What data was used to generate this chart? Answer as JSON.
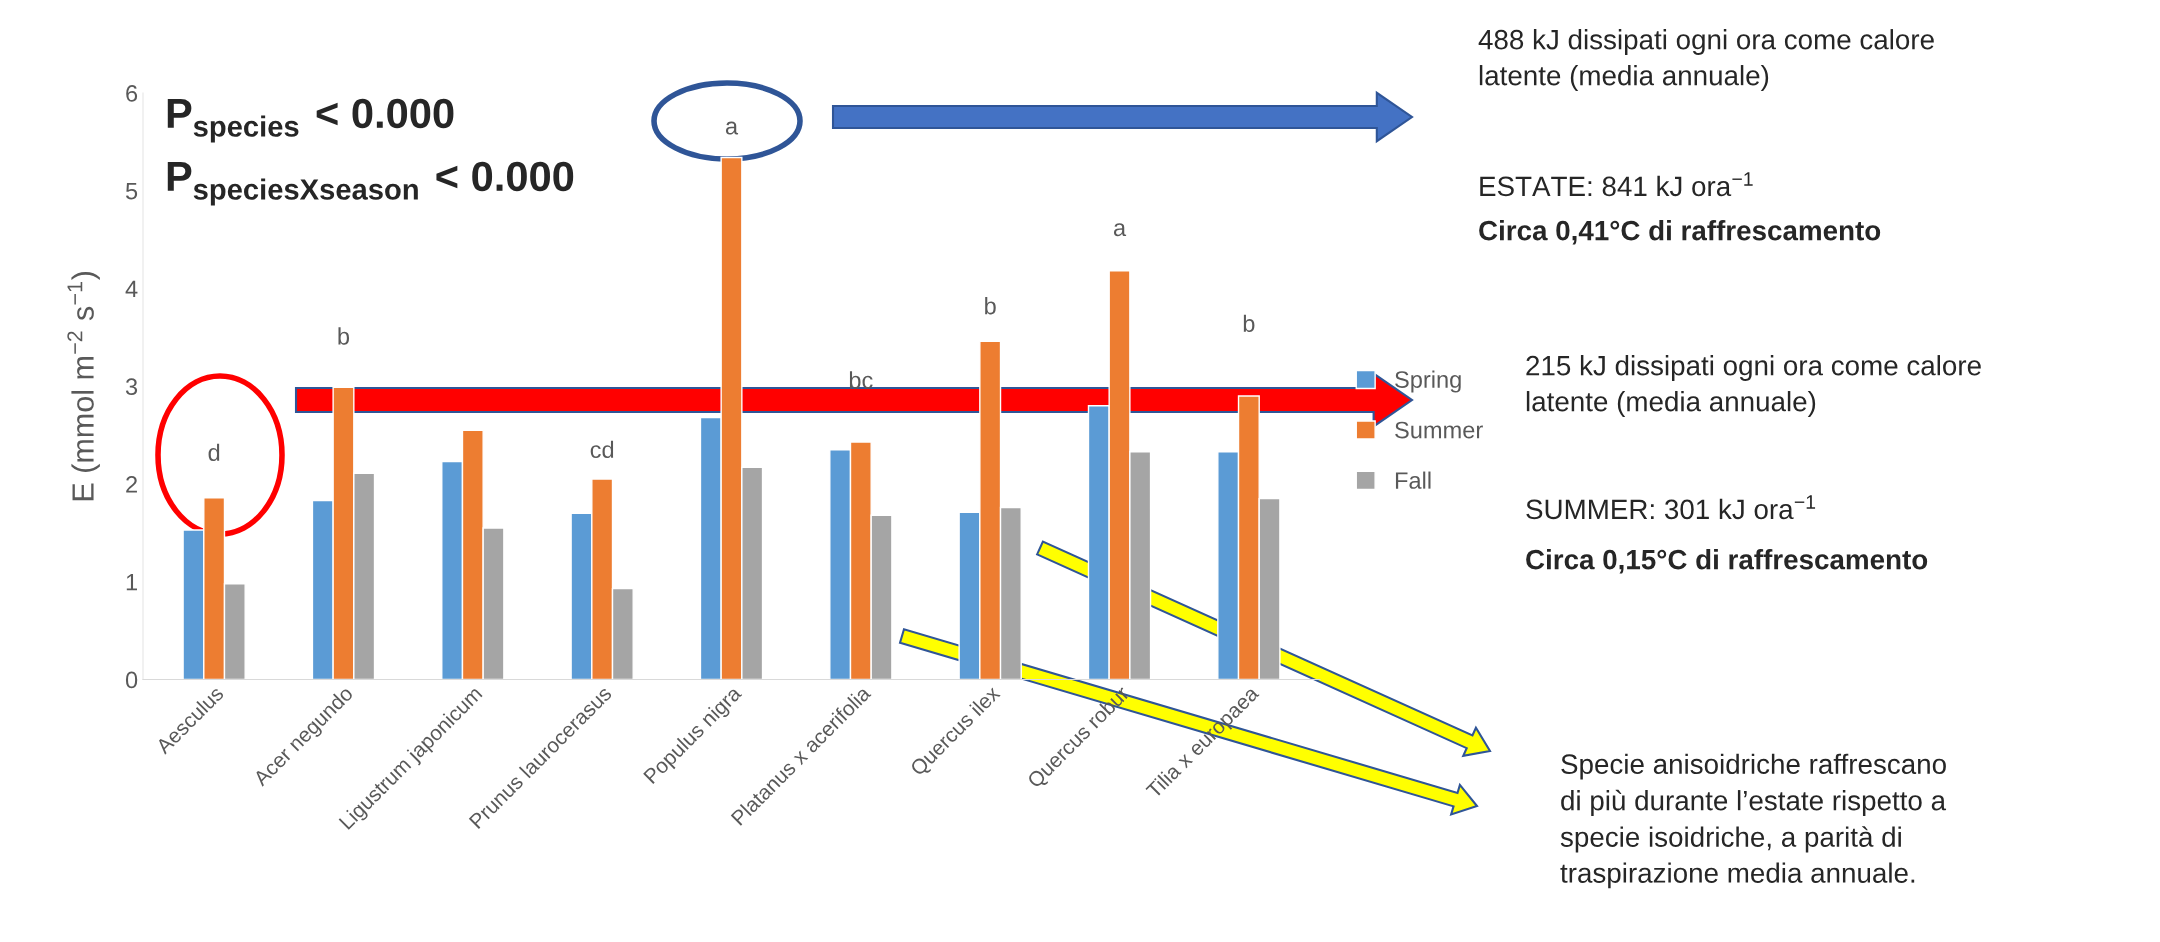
{
  "chart_data": {
    "type": "bar",
    "ylabel": "E (mmol m$^{−2}$ s$^{−1}$)",
    "categories": [
      "Aesculus",
      "Acer negundo",
      "Ligustrum japonicum",
      "Prunus laurocerasus",
      "Populus nigra",
      "Platanus x acerifolia",
      "Quercus ilex",
      "Quercus robur",
      "Tilia x europaea"
    ],
    "series": [
      {
        "name": "Spring",
        "color": "#5b9bd5",
        "values": [
          1.53,
          1.83,
          2.23,
          1.7,
          2.68,
          2.35,
          1.71,
          2.8,
          2.33
        ]
      },
      {
        "name": "Summer",
        "color": "#ed7d31",
        "values": [
          1.86,
          2.99,
          2.55,
          2.05,
          5.34,
          2.43,
          3.46,
          4.18,
          2.9
        ]
      },
      {
        "name": "Fall",
        "color": "#a5a5a5",
        "values": [
          0.98,
          2.11,
          1.55,
          0.93,
          2.17,
          1.68,
          1.76,
          2.33,
          1.85
        ]
      }
    ],
    "ylim": [
      0,
      6
    ],
    "yticks": [
      0,
      1,
      2,
      3,
      4,
      5,
      6
    ],
    "grid": false,
    "legend": "right",
    "annotations": [
      "P$_{species}$ < 0.000",
      "P$_{speciesXseason}$ < 0.000",
      "488 kJ dissipati ogni ora come calore\nlatente (media annuale)",
      "ESTATE: 841 kJ ora$^{−1}$",
      "Circa 0,41°C di raffrescamento",
      "215 kJ dissipati ogni ora come calore\nlatente (media annuale)",
      "SUMMER: 301 kJ ora$^{−1}$",
      "Circa 0,15°C di raffrescamento",
      "Specie anisoidriche raffrescano\ndi più durante l’estate rispetto a\nspecie isoidriche, a parità di\ntraspirazione media annuale.",
      "d",
      "b",
      "cd",
      "a",
      "bc",
      "b",
      "a",
      "b"
    ]
  }
}
